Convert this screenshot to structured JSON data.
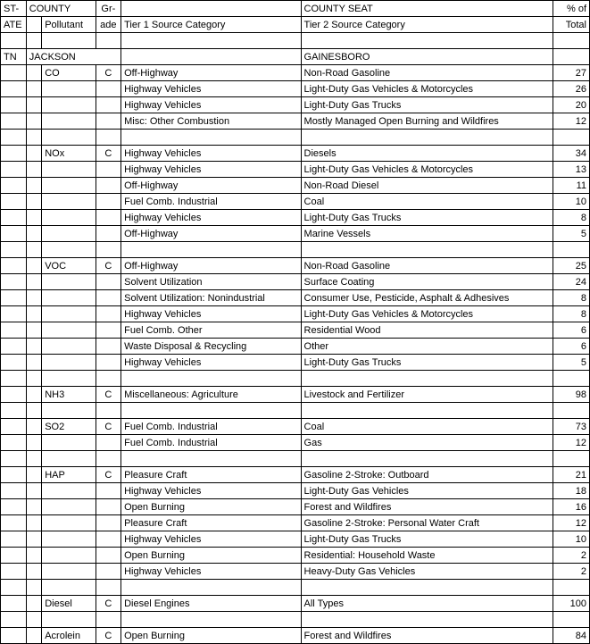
{
  "header": {
    "row1": {
      "state": "ST-",
      "county": "COUNTY",
      "grade": "Gr-",
      "tier1": "",
      "tier2": "COUNTY SEAT",
      "pct": "% of"
    },
    "row2": {
      "state": "ATE",
      "pollutant": "Pollutant",
      "grade": "ade",
      "tier1": "Tier 1 Source Category",
      "tier2": "Tier 2 Source Category",
      "pct": "Total"
    }
  },
  "rows": [
    {
      "type": "blank"
    },
    {
      "type": "county",
      "state": "TN",
      "county": "JACKSON",
      "seat": "GAINESBORO"
    },
    {
      "type": "data",
      "pollutant": "CO",
      "grade": "C",
      "tier1": "Off-Highway",
      "tier2": "Non-Road Gasoline",
      "pct": "27"
    },
    {
      "type": "data",
      "tier1": "Highway Vehicles",
      "tier2": "Light-Duty Gas Vehicles & Motorcycles",
      "pct": "26"
    },
    {
      "type": "data",
      "tier1": "Highway Vehicles",
      "tier2": "Light-Duty Gas Trucks",
      "pct": "20"
    },
    {
      "type": "data",
      "tier1": "Misc: Other Combustion",
      "tier2": "Mostly Managed Open Burning and Wildfires",
      "pct": "12"
    },
    {
      "type": "blank"
    },
    {
      "type": "data",
      "pollutant": "NOx",
      "grade": "C",
      "tier1": "Highway Vehicles",
      "tier2": "Diesels",
      "pct": "34"
    },
    {
      "type": "data",
      "tier1": "Highway Vehicles",
      "tier2": "Light-Duty Gas Vehicles & Motorcycles",
      "pct": "13"
    },
    {
      "type": "data",
      "tier1": "Off-Highway",
      "tier2": "Non-Road Diesel",
      "pct": "11"
    },
    {
      "type": "data",
      "tier1": "Fuel Comb. Industrial",
      "tier2": "Coal",
      "pct": "10"
    },
    {
      "type": "data",
      "tier1": "Highway Vehicles",
      "tier2": "Light-Duty Gas Trucks",
      "pct": "8"
    },
    {
      "type": "data",
      "tier1": "Off-Highway",
      "tier2": "Marine Vessels",
      "pct": "5"
    },
    {
      "type": "blank"
    },
    {
      "type": "data",
      "pollutant": "VOC",
      "grade": "C",
      "tier1": "Off-Highway",
      "tier2": "Non-Road Gasoline",
      "pct": "25"
    },
    {
      "type": "data",
      "tier1": "Solvent Utilization",
      "tier2": "Surface Coating",
      "pct": "24"
    },
    {
      "type": "data",
      "tier1": "Solvent Utilization: Nonindustrial",
      "tier2": "Consumer Use, Pesticide, Asphalt & Adhesives",
      "pct": "8"
    },
    {
      "type": "data",
      "tier1": "Highway Vehicles",
      "tier2": "Light-Duty Gas Vehicles & Motorcycles",
      "pct": "8"
    },
    {
      "type": "data",
      "tier1": "Fuel Comb. Other",
      "tier2": "Residential Wood",
      "pct": "6"
    },
    {
      "type": "data",
      "tier1": "Waste Disposal & Recycling",
      "tier2": "Other",
      "pct": "6"
    },
    {
      "type": "data",
      "tier1": "Highway Vehicles",
      "tier2": "Light-Duty Gas Trucks",
      "pct": "5"
    },
    {
      "type": "blank"
    },
    {
      "type": "data",
      "pollutant": "NH3",
      "grade": "C",
      "tier1": "Miscellaneous: Agriculture",
      "tier2": "Livestock and Fertilizer",
      "pct": "98"
    },
    {
      "type": "blank"
    },
    {
      "type": "data",
      "pollutant": "SO2",
      "grade": "C",
      "tier1": "Fuel Comb. Industrial",
      "tier2": "Coal",
      "pct": "73"
    },
    {
      "type": "data",
      "tier1": "Fuel Comb. Industrial",
      "tier2": "Gas",
      "pct": "12"
    },
    {
      "type": "blank"
    },
    {
      "type": "data",
      "pollutant": "HAP",
      "grade": "C",
      "tier1": "Pleasure Craft",
      "tier2": "Gasoline 2-Stroke: Outboard",
      "pct": "21"
    },
    {
      "type": "data",
      "tier1": "Highway Vehicles",
      "tier2": "Light-Duty Gas Vehicles",
      "pct": "18"
    },
    {
      "type": "data",
      "tier1": "Open Burning",
      "tier2": "Forest and Wildfires",
      "pct": "16"
    },
    {
      "type": "data",
      "tier1": "Pleasure Craft",
      "tier2": "Gasoline 2-Stroke: Personal Water Craft",
      "pct": "12"
    },
    {
      "type": "data",
      "tier1": "Highway Vehicles",
      "tier2": "Light-Duty Gas Trucks",
      "pct": "10"
    },
    {
      "type": "data",
      "tier1": "Open Burning",
      "tier2": "Residential: Household Waste",
      "pct": "2"
    },
    {
      "type": "data",
      "tier1": "Highway Vehicles",
      "tier2": "Heavy-Duty Gas Vehicles",
      "pct": "2"
    },
    {
      "type": "blank"
    },
    {
      "type": "data",
      "pollutant": "Diesel",
      "grade": "C",
      "tier1": "Diesel Engines",
      "tier2": "All Types",
      "pct": "100"
    },
    {
      "type": "blank"
    },
    {
      "type": "data",
      "pollutant": "Acrolein",
      "grade": "C",
      "tier1": "Open Burning",
      "tier2": "Forest and Wildfires",
      "pct": "84"
    }
  ]
}
